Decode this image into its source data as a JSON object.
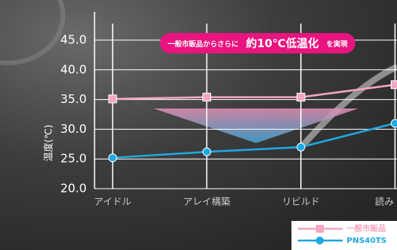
{
  "chart_data": {
    "type": "line",
    "annotation": [
      "一般市販品からさらに",
      "約10℃低温化",
      "を実現"
    ],
    "y_label": "温度(℃)",
    "categories": [
      "アイドル",
      "アレイ構築",
      "リビルド",
      "読み"
    ],
    "series": [
      {
        "name": "一般市販品",
        "color": "#f4a6c4",
        "marker": "square",
        "values": [
          35.1,
          35.4,
          35.4,
          37.5
        ]
      },
      {
        "name": "PNS40TS",
        "color": "#1ea9e1",
        "marker": "circle",
        "values": [
          25.2,
          26.2,
          27.0,
          31.0
        ]
      }
    ],
    "ylim": [
      20,
      45
    ],
    "yticks": [
      {
        "value": 20,
        "label": "20.0"
      },
      {
        "value": 25,
        "label": "25.0"
      },
      {
        "value": 30,
        "label": "30.0"
      },
      {
        "value": 35,
        "label": "35.0"
      },
      {
        "value": 40,
        "label": "40.0"
      },
      {
        "value": 45,
        "label": "45.0"
      }
    ],
    "grid": true
  }
}
